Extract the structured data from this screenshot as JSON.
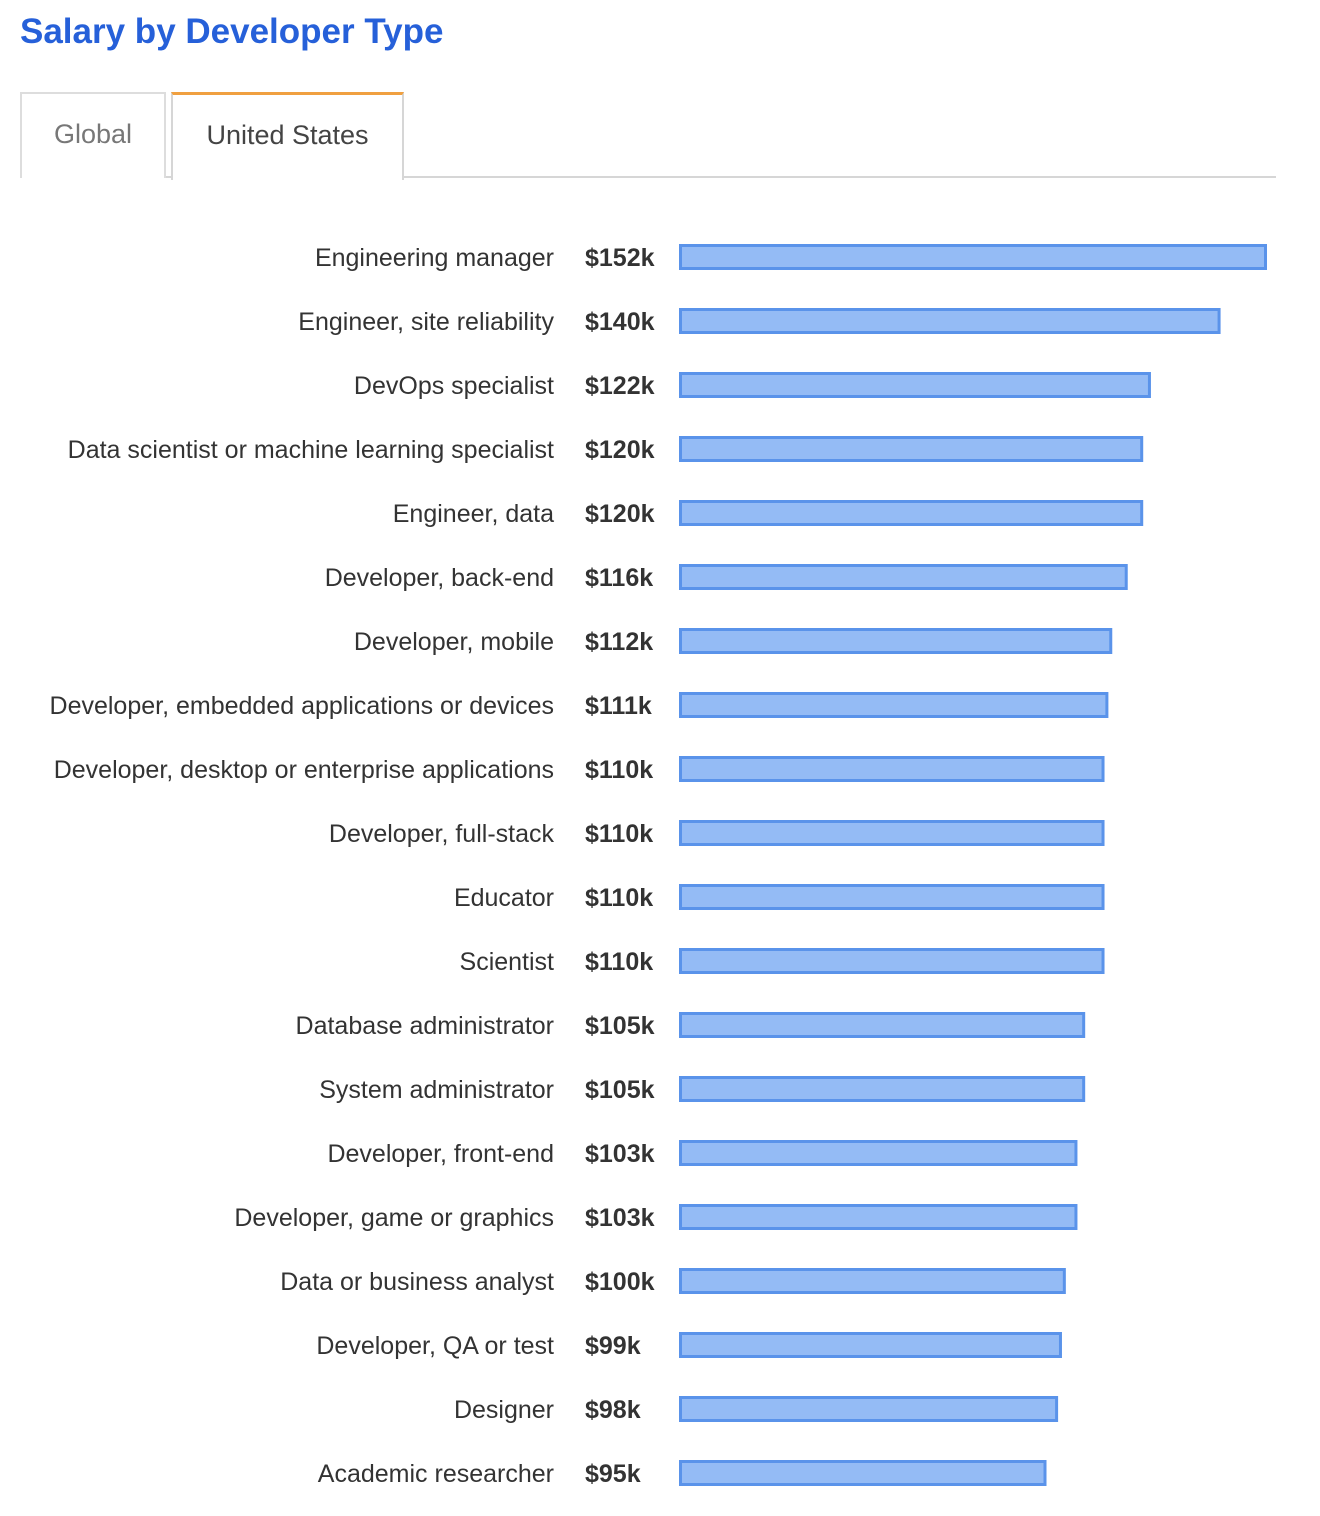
{
  "page": {
    "title": "Salary by Developer Type"
  },
  "tabs": [
    {
      "label": "Global",
      "active": false
    },
    {
      "label": "United States",
      "active": true
    }
  ],
  "colors": {
    "title": "#2660d9",
    "tab_active_accent": "#f0a040",
    "bar_fill": "#94bbf5",
    "bar_stroke": "#5a93ea",
    "label_text": "#333333"
  },
  "chart_data": {
    "type": "bar",
    "orientation": "horizontal",
    "title": "",
    "xlabel": "",
    "ylabel": "",
    "unit": "USD",
    "xlim": [
      0,
      152000
    ],
    "grid": false,
    "categories": [
      "Engineering manager",
      "Engineer, site reliability",
      "DevOps specialist",
      "Data scientist or machine learning specialist",
      "Engineer, data",
      "Developer, back-end",
      "Developer, mobile",
      "Developer, embedded applications or devices",
      "Developer, desktop or enterprise applications",
      "Developer, full-stack",
      "Educator",
      "Scientist",
      "Database administrator",
      "System administrator",
      "Developer, front-end",
      "Developer, game or graphics",
      "Data or business analyst",
      "Developer, QA or test",
      "Designer",
      "Academic researcher"
    ],
    "values": [
      152000,
      140000,
      122000,
      120000,
      120000,
      116000,
      112000,
      111000,
      110000,
      110000,
      110000,
      110000,
      105000,
      105000,
      103000,
      103000,
      100000,
      99000,
      98000,
      95000
    ],
    "value_labels": [
      "$152k",
      "$140k",
      "$122k",
      "$120k",
      "$120k",
      "$116k",
      "$112k",
      "$111k",
      "$110k",
      "$110k",
      "$110k",
      "$110k",
      "$105k",
      "$105k",
      "$103k",
      "$103k",
      "$100k",
      "$99k",
      "$98k",
      "$95k"
    ]
  }
}
